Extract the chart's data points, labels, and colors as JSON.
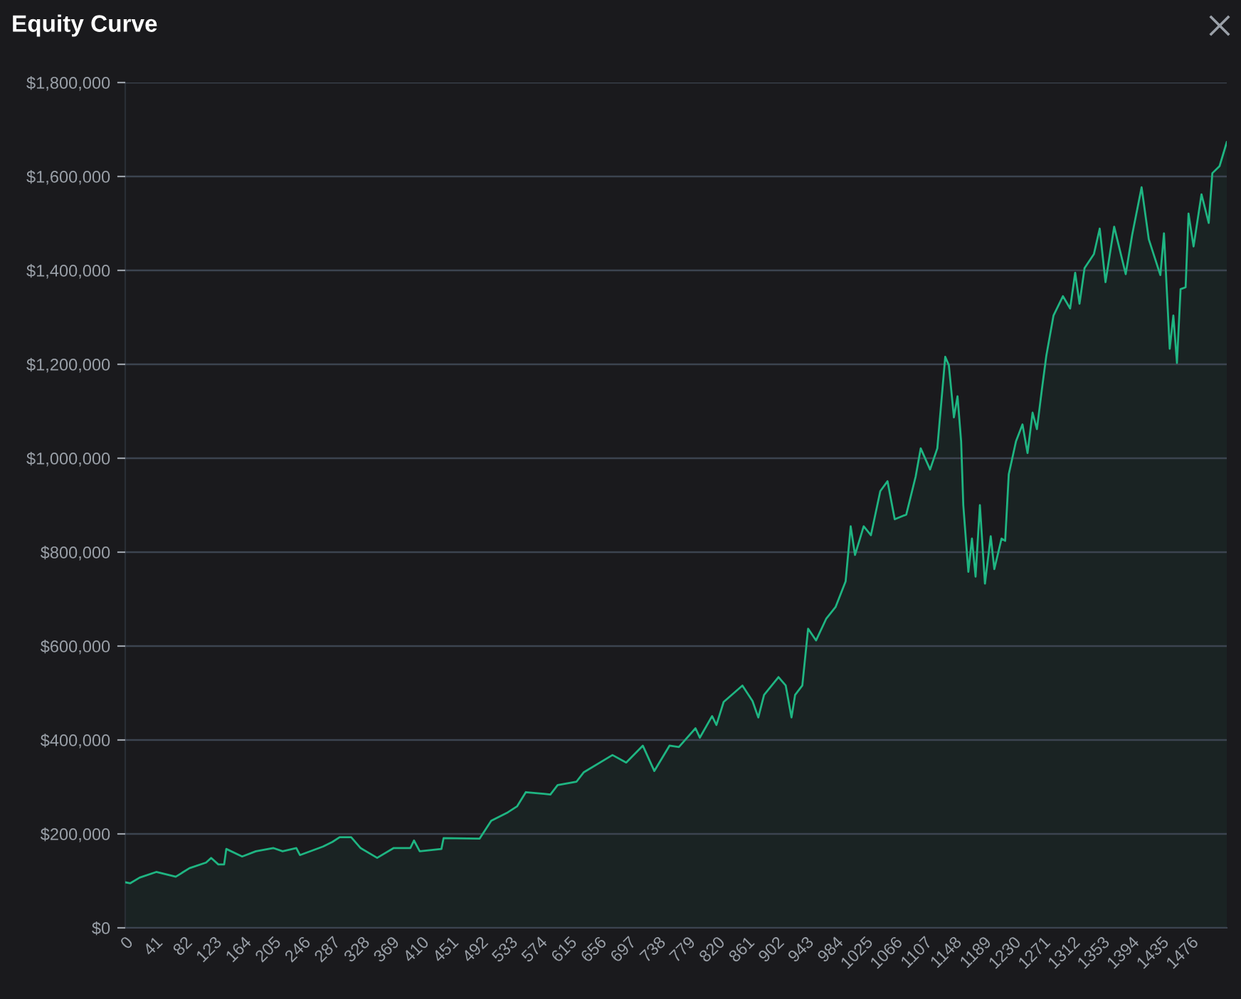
{
  "chart_data": {
    "type": "area",
    "title": "Equity Curve",
    "x": [
      0,
      7,
      20,
      43,
      70,
      89,
      112,
      119,
      129,
      137,
      140,
      162,
      181,
      205,
      218,
      237,
      242,
      274,
      287,
      297,
      313,
      326,
      349,
      372,
      395,
      400,
      408,
      438,
      441,
      491,
      507,
      530,
      543,
      555,
      589,
      599,
      625,
      635,
      675,
      694,
      717,
      733,
      754,
      767,
      790,
      796,
      813,
      819,
      829,
      855,
      869,
      877,
      885,
      905,
      915,
      923,
      928,
      938,
      946,
      957,
      971,
      984,
      998,
      1005,
      1011,
      1023,
      1033,
      1046,
      1056,
      1066,
      1082,
      1095,
      1102,
      1115,
      1125,
      1136,
      1141,
      1148,
      1153,
      1158,
      1161,
      1168,
      1173,
      1178,
      1184,
      1191,
      1199,
      1204,
      1214,
      1219,
      1224,
      1234,
      1243,
      1250,
      1257,
      1263,
      1270,
      1276,
      1286,
      1299,
      1309,
      1316,
      1322,
      1329,
      1342,
      1350,
      1358,
      1370,
      1386,
      1395,
      1408,
      1418,
      1434,
      1439,
      1447,
      1452,
      1457,
      1462,
      1469,
      1473,
      1480,
      1491,
      1501,
      1506,
      1516,
      1526
    ],
    "series": [
      {
        "color": "#1fb582",
        "values": [
          97000,
          95000,
          107000,
          119000,
          109000,
          127000,
          139000,
          149000,
          135000,
          135000,
          168000,
          152000,
          163000,
          170000,
          163000,
          170000,
          155000,
          173000,
          183000,
          193000,
          193000,
          170000,
          149000,
          170000,
          170000,
          186000,
          163000,
          168000,
          191000,
          190000,
          228000,
          246000,
          259000,
          289000,
          284000,
          304000,
          311000,
          331000,
          368000,
          352000,
          388000,
          334000,
          388000,
          385000,
          425000,
          405000,
          451000,
          432000,
          481000,
          516000,
          483000,
          448000,
          496000,
          534000,
          516000,
          448000,
          496000,
          516000,
          637000,
          612000,
          658000,
          683000,
          738000,
          855000,
          794000,
          855000,
          836000,
          930000,
          951000,
          870000,
          880000,
          961000,
          1021000,
          976000,
          1021000,
          1216000,
          1198000,
          1087000,
          1132000,
          1036000,
          900000,
          758000,
          829000,
          748000,
          900000,
          733000,
          834000,
          764000,
          829000,
          824000,
          966000,
          1036000,
          1072000,
          1011000,
          1097000,
          1062000,
          1148000,
          1218000,
          1304000,
          1345000,
          1319000,
          1395000,
          1329000,
          1405000,
          1435000,
          1489000,
          1375000,
          1493000,
          1392000,
          1476000,
          1577000,
          1466000,
          1390000,
          1479000,
          1233000,
          1304000,
          1203000,
          1360000,
          1364000,
          1521000,
          1451000,
          1562000,
          1501000,
          1607000,
          1622000,
          1673000
        ]
      }
    ],
    "xlim": [
      0,
      1526
    ],
    "xticks": [
      0,
      41,
      82,
      123,
      164,
      205,
      246,
      287,
      328,
      369,
      410,
      451,
      492,
      533,
      574,
      615,
      656,
      697,
      738,
      779,
      820,
      861,
      902,
      943,
      984,
      1025,
      1066,
      1107,
      1148,
      1189,
      1230,
      1271,
      1312,
      1353,
      1394,
      1435,
      1476
    ],
    "ylim": [
      0,
      1800000
    ],
    "yticks": [
      {
        "value": 0,
        "label": "$0"
      },
      {
        "value": 200000,
        "label": "$200,000"
      },
      {
        "value": 400000,
        "label": "$400,000"
      },
      {
        "value": 600000,
        "label": "$600,000"
      },
      {
        "value": 800000,
        "label": "$800,000"
      },
      {
        "value": 1000000,
        "label": "$1,000,000"
      },
      {
        "value": 1200000,
        "label": "$1,200,000"
      },
      {
        "value": 1400000,
        "label": "$1,400,000"
      },
      {
        "value": 1600000,
        "label": "$1,600,000"
      },
      {
        "value": 1800000,
        "label": "$1,800,000"
      }
    ],
    "grid": "y"
  }
}
